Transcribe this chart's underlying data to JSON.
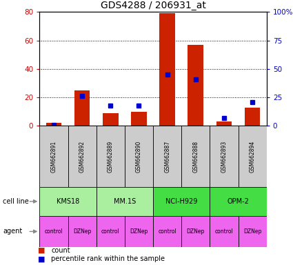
{
  "title": "GDS4288 / 206931_at",
  "samples": [
    "GSM662891",
    "GSM662892",
    "GSM662889",
    "GSM662890",
    "GSM662887",
    "GSM662888",
    "GSM662893",
    "GSM662894"
  ],
  "count_values": [
    2,
    25,
    9,
    10,
    79,
    57,
    3,
    13
  ],
  "percentile_values": [
    1,
    26,
    18,
    18,
    45,
    41,
    7,
    21
  ],
  "ylim_left": [
    0,
    80
  ],
  "ylim_right": [
    0,
    100
  ],
  "yticks_left": [
    0,
    20,
    40,
    60,
    80
  ],
  "yticks_right": [
    0,
    25,
    50,
    75,
    100
  ],
  "yticklabels_right": [
    "0",
    "25",
    "50",
    "75",
    "100%"
  ],
  "cell_lines": [
    {
      "label": "KMS18",
      "span": [
        0,
        2
      ],
      "color": "#AAEEA0"
    },
    {
      "label": "MM.1S",
      "span": [
        2,
        4
      ],
      "color": "#AAEEA0"
    },
    {
      "label": "NCI-H929",
      "span": [
        4,
        6
      ],
      "color": "#44DD44"
    },
    {
      "label": "OPM-2",
      "span": [
        6,
        8
      ],
      "color": "#44DD44"
    }
  ],
  "agent_labels": [
    "control",
    "DZNep",
    "control",
    "DZNep",
    "control",
    "DZNep",
    "control",
    "DZNep"
  ],
  "agent_color": "#EE66EE",
  "sample_box_color": "#CCCCCC",
  "bar_color": "#CC2200",
  "marker_color": "#0000CC",
  "left_axis_color": "#CC0000",
  "right_axis_color": "#0000CC"
}
